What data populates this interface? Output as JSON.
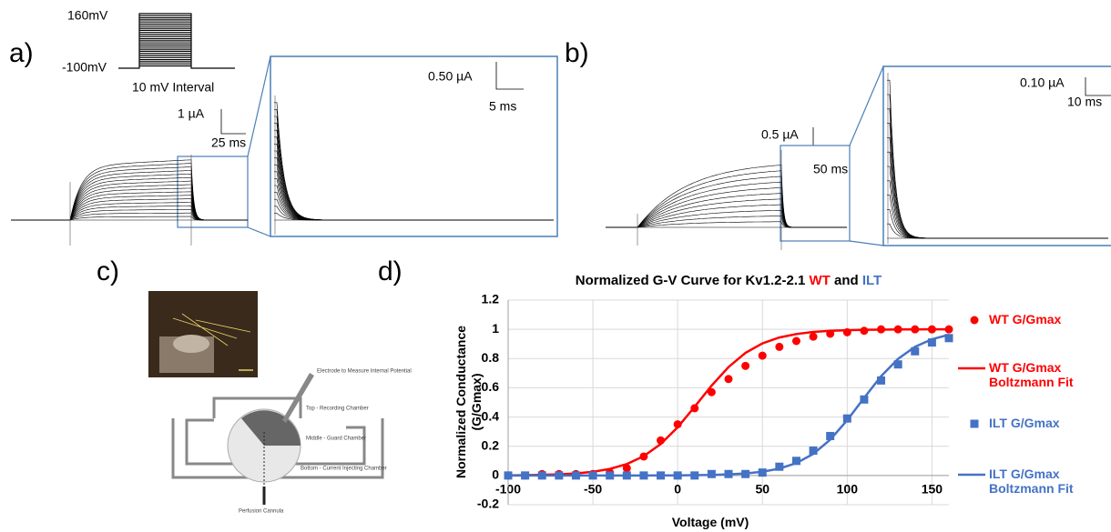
{
  "panels": {
    "a": {
      "label": "a)",
      "protocol_high": "160mV",
      "protocol_low": "-100mV",
      "interval": "10 mV Interval",
      "scale_current": "1 µA",
      "scale_time": "25 ms",
      "zoom_current": "0.50 µA",
      "zoom_time": "5 ms"
    },
    "b": {
      "label": "b)",
      "scale_current": "0.5 µA",
      "scale_time": "50 ms",
      "zoom_current": "0.10 µA",
      "zoom_time": "10 ms"
    },
    "c": {
      "label": "c)",
      "electrode": "Electrode to Measure Internal Potential",
      "top": "Top - Recording Chamber",
      "middle": "Middle - Guard Chamber",
      "bottom": "Bottom - Current Injecting Chamber",
      "cannula": "Perfusion Cannula"
    },
    "d": {
      "label": "d)"
    }
  },
  "chart_data": {
    "type": "scatter",
    "title_parts": [
      {
        "text": "Normalized G-V Curve for Kv1.2-2.1 ",
        "color": "#000000"
      },
      {
        "text": "WT",
        "color": "#ff0000"
      },
      {
        "text": " and ",
        "color": "#000000"
      },
      {
        "text": "ILT",
        "color": "#4472c4"
      }
    ],
    "xlabel": "Voltage (mV)",
    "ylabel": "Normalized Conductance (G/Gmax)",
    "x": [
      -100,
      -90,
      -80,
      -70,
      -60,
      -50,
      -40,
      -30,
      -20,
      -10,
      0,
      10,
      20,
      30,
      40,
      50,
      60,
      70,
      80,
      90,
      100,
      110,
      120,
      130,
      140,
      150,
      160
    ],
    "series": [
      {
        "name": "WT G/Gmax",
        "color": "#ff0000",
        "mode": "markers",
        "marker": "circle",
        "values": [
          0,
          0,
          0.01,
          0.01,
          0.01,
          0.01,
          0.02,
          0.05,
          0.13,
          0.24,
          0.35,
          0.46,
          0.57,
          0.66,
          0.75,
          0.82,
          0.88,
          0.92,
          0.95,
          0.97,
          0.98,
          0.99,
          1,
          1,
          1,
          1,
          1
        ]
      },
      {
        "name": "WT G/Gmax Boltzmann Fit",
        "color": "#ff0000",
        "mode": "line",
        "values": [
          0.001,
          0.002,
          0.005,
          0.008,
          0.014,
          0.025,
          0.045,
          0.078,
          0.132,
          0.215,
          0.33,
          0.47,
          0.615,
          0.742,
          0.839,
          0.904,
          0.944,
          0.968,
          0.982,
          0.99,
          0.994,
          0.997,
          0.998,
          0.999,
          0.999,
          1,
          1
        ]
      },
      {
        "name": "ILT G/Gmax",
        "color": "#4472c4",
        "mode": "markers",
        "marker": "square",
        "values": [
          0,
          0,
          0,
          0,
          0,
          0,
          0,
          0,
          0,
          0,
          0,
          0,
          0.01,
          0.01,
          0.01,
          0.02,
          0.06,
          0.1,
          0.17,
          0.27,
          0.39,
          0.52,
          0.65,
          0.76,
          0.85,
          0.91,
          0.94
        ]
      },
      {
        "name": "ILT G/Gmax Boltzmann Fit",
        "color": "#4472c4",
        "mode": "line",
        "values": [
          0,
          0,
          0,
          0,
          0,
          0,
          0,
          0,
          0,
          0.001,
          0.001,
          0.002,
          0.004,
          0.008,
          0.014,
          0.026,
          0.047,
          0.085,
          0.148,
          0.245,
          0.378,
          0.531,
          0.679,
          0.798,
          0.881,
          0.932,
          0.963
        ]
      }
    ],
    "xlim": [
      -100,
      160
    ],
    "xticks": [
      -100,
      -50,
      0,
      50,
      100,
      150
    ],
    "ylim": [
      -0.2,
      1.2
    ],
    "yticks": [
      -0.2,
      0,
      0.2,
      0.4,
      0.6,
      0.8,
      1,
      1.2
    ],
    "grid": true,
    "legend": "right"
  }
}
